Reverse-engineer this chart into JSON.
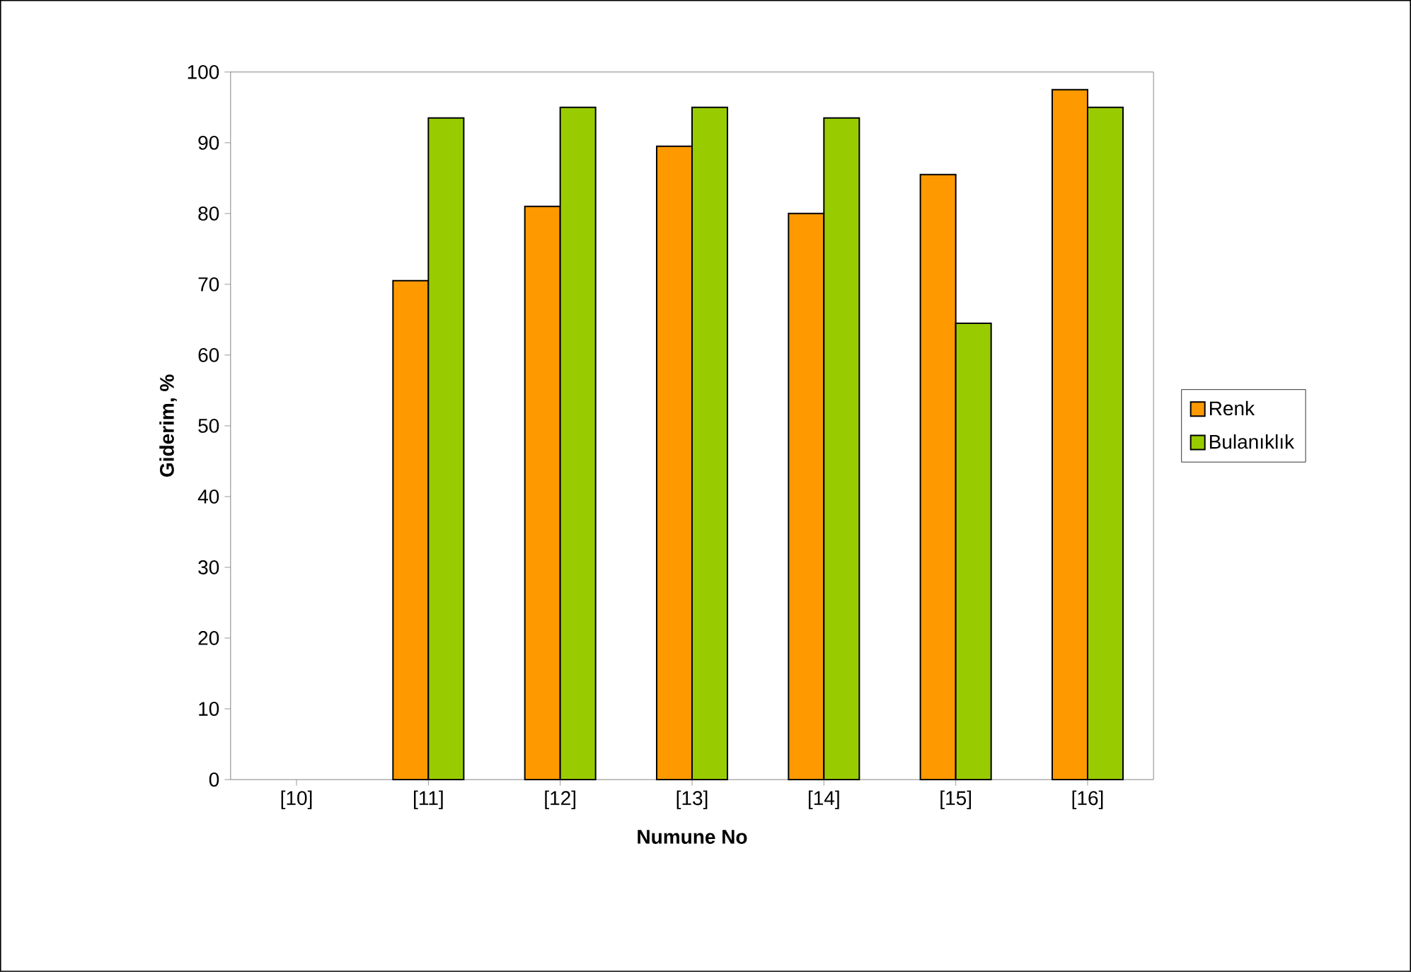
{
  "chart_data": {
    "type": "bar",
    "xlabel": "Numune No",
    "ylabel": "Giderim, %",
    "categories": [
      "[10]",
      "[11]",
      "[12]",
      "[13]",
      "[14]",
      "[15]",
      "[16]"
    ],
    "series": [
      {
        "name": "Renk",
        "color": "#ff9900",
        "values": [
          null,
          70.5,
          81,
          89.5,
          80,
          85.5,
          97.5
        ]
      },
      {
        "name": "Bulanıklık",
        "color": "#99cc00",
        "values": [
          null,
          93.5,
          95,
          95,
          93.5,
          64.5,
          95
        ]
      }
    ],
    "ylim": [
      0,
      100
    ],
    "yticks": [
      0,
      10,
      20,
      30,
      40,
      50,
      60,
      70,
      80,
      90,
      100
    ],
    "legend": "right"
  }
}
